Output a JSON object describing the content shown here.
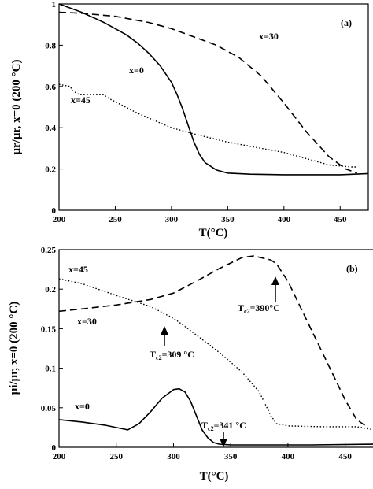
{
  "chart_data": [
    {
      "type": "line",
      "panel_label": "(a)",
      "xlabel": "T(°C)",
      "ylabel": "μr/μr, x=0 (200 °C)",
      "xlim": [
        200,
        475
      ],
      "ylim": [
        0,
        1
      ],
      "x_ticks": [
        "200",
        "250",
        "300",
        "350",
        "400",
        "450"
      ],
      "y_ticks": [
        "0",
        "0.2",
        "0.4",
        "0.6",
        "0.8",
        "1"
      ],
      "grid": false,
      "series": [
        {
          "name": "x=0",
          "style": "solid",
          "x": [
            200,
            220,
            240,
            260,
            270,
            280,
            290,
            300,
            305,
            310,
            315,
            320,
            325,
            330,
            340,
            350,
            370,
            400,
            450,
            475
          ],
          "y": [
            1.0,
            0.96,
            0.91,
            0.85,
            0.81,
            0.76,
            0.7,
            0.62,
            0.56,
            0.49,
            0.41,
            0.33,
            0.27,
            0.23,
            0.195,
            0.18,
            0.175,
            0.172,
            0.172,
            0.178
          ]
        },
        {
          "name": "x=30",
          "style": "dashed",
          "x": [
            200,
            220,
            250,
            280,
            300,
            320,
            340,
            360,
            380,
            400,
            420,
            440,
            455,
            465
          ],
          "y": [
            0.96,
            0.955,
            0.94,
            0.91,
            0.88,
            0.84,
            0.8,
            0.74,
            0.65,
            0.52,
            0.38,
            0.26,
            0.2,
            0.18
          ]
        },
        {
          "name": "x=45",
          "style": "dotted",
          "x": [
            200,
            210,
            212,
            215,
            218,
            240,
            242,
            245,
            270,
            300,
            320,
            350,
            380,
            400,
            420,
            440,
            460,
            465
          ],
          "y": [
            0.61,
            0.6,
            0.58,
            0.57,
            0.56,
            0.56,
            0.55,
            0.54,
            0.47,
            0.4,
            0.37,
            0.33,
            0.3,
            0.28,
            0.25,
            0.22,
            0.21,
            0.21
          ]
        }
      ],
      "annotations": []
    },
    {
      "type": "line",
      "panel_label": "(b)",
      "xlabel": "T(°C)",
      "ylabel": "μi/μr, x=0 (200 °C)",
      "xlim": [
        200,
        475
      ],
      "ylim": [
        0,
        0.25
      ],
      "x_ticks": [
        "200",
        "250",
        "300",
        "350",
        "400",
        "450"
      ],
      "y_ticks": [
        "0",
        "0.05",
        "0.1",
        "0.15",
        "0.2",
        "0.25"
      ],
      "grid": false,
      "series": [
        {
          "name": "x=0",
          "style": "solid",
          "x": [
            200,
            220,
            240,
            250,
            260,
            270,
            280,
            290,
            300,
            305,
            310,
            315,
            320,
            325,
            330,
            335,
            340,
            350,
            380,
            420,
            475
          ],
          "y": [
            0.035,
            0.032,
            0.028,
            0.025,
            0.022,
            0.03,
            0.045,
            0.062,
            0.073,
            0.074,
            0.07,
            0.058,
            0.04,
            0.022,
            0.012,
            0.006,
            0.004,
            0.003,
            0.003,
            0.003,
            0.004
          ]
        },
        {
          "name": "x=30",
          "style": "dashed",
          "x": [
            200,
            220,
            250,
            280,
            300,
            320,
            340,
            360,
            370,
            385,
            390,
            400,
            420,
            440,
            450,
            460,
            470
          ],
          "y": [
            0.172,
            0.175,
            0.18,
            0.187,
            0.195,
            0.21,
            0.226,
            0.24,
            0.242,
            0.237,
            0.232,
            0.21,
            0.15,
            0.09,
            0.06,
            0.035,
            0.025
          ]
        },
        {
          "name": "x=45",
          "style": "dotted",
          "x": [
            200,
            220,
            250,
            280,
            300,
            309,
            320,
            340,
            360,
            375,
            380,
            385,
            390,
            400,
            430,
            460,
            475
          ],
          "y": [
            0.213,
            0.207,
            0.192,
            0.178,
            0.163,
            0.154,
            0.142,
            0.12,
            0.095,
            0.07,
            0.055,
            0.04,
            0.03,
            0.027,
            0.026,
            0.026,
            0.022
          ]
        }
      ],
      "annotations": [
        {
          "text": "T",
          "sub": "c2",
          "suffix": "=390°C",
          "x": 390,
          "y": 0.232
        },
        {
          "text": "T",
          "sub": "c2",
          "suffix": "=309 °C",
          "x": 309,
          "y": 0.154
        },
        {
          "text": "T",
          "sub": "c2",
          "suffix": "=341 °C",
          "x": 341,
          "y": 0.003
        }
      ]
    }
  ]
}
